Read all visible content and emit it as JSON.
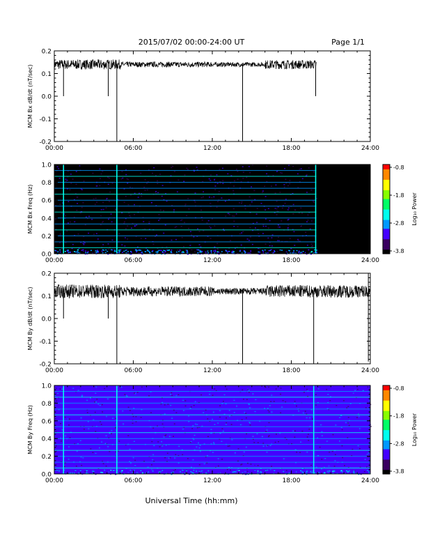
{
  "header": {
    "title": "2015/07/02  00:00-24:00 UT",
    "page": "Page 1/1"
  },
  "footer": {
    "xlabel": "Universal Time (hh:mm)"
  },
  "colorbar": {
    "label": "Log₁₀ Power",
    "ticks": [
      "-0.8",
      "-1.8",
      "-2.8",
      "-3.8"
    ],
    "range": [
      -3.8,
      -0.8
    ],
    "colors": [
      "#000000",
      "#3a0060",
      "#4400ff",
      "#0099ff",
      "#00ffee",
      "#00ff66",
      "#88ff00",
      "#ffff00",
      "#ff8800",
      "#ff0000"
    ]
  },
  "x_ticks": [
    "00:00",
    "06:00",
    "12:00",
    "18:00",
    "24:00"
  ],
  "chart_data": [
    {
      "type": "line",
      "ylabel": "MCM Bx dB/dt (nT/sec)",
      "xlim": [
        0,
        24
      ],
      "ylim": [
        -0.2,
        0.2
      ],
      "yticks": [
        "-0.2",
        "-0.1",
        "0.0",
        "0.1",
        "0.2"
      ],
      "ytick_values": [
        -0.2,
        -0.1,
        0.0,
        0.1,
        0.2
      ],
      "baseline": 0.14,
      "noise_segments": [
        {
          "x": [
            0,
            5
          ],
          "amp": 0.022
        },
        {
          "x": [
            5,
            12
          ],
          "amp": 0.012
        },
        {
          "x": [
            12,
            16
          ],
          "amp": 0.01
        },
        {
          "x": [
            16,
            19.9
          ],
          "amp": 0.02
        }
      ],
      "data_end": 19.9,
      "spikes": [
        {
          "x": 0.7,
          "y": 0.0
        },
        {
          "x": 4.1,
          "y": 0.0
        },
        {
          "x": 4.75,
          "y": -0.2
        },
        {
          "x": 14.3,
          "y": -0.2
        },
        {
          "x": 19.85,
          "y": 0.0
        }
      ]
    },
    {
      "type": "heatmap",
      "ylabel": "MCM Bx Freq (Hz)",
      "xlim": [
        0,
        24
      ],
      "ylim": [
        0,
        1.0
      ],
      "yticks": [
        "0.0",
        "0.2",
        "0.4",
        "0.6",
        "0.8",
        "1.0"
      ],
      "ytick_values": [
        0,
        0.2,
        0.4,
        0.6,
        0.8,
        1.0
      ],
      "data_end": 19.9,
      "background_power": -3.7,
      "harmonic_lines_hz": [
        0.067,
        0.133,
        0.2,
        0.267,
        0.333,
        0.4,
        0.467,
        0.533,
        0.6,
        0.667,
        0.733,
        0.8,
        0.867,
        0.933,
        1.0
      ],
      "vertical_lines_hr": [
        0.7,
        4.75,
        19.85
      ]
    },
    {
      "type": "line",
      "ylabel": "MCM By dB/dt (nT/sec)",
      "xlim": [
        0,
        24
      ],
      "ylim": [
        -0.2,
        0.2
      ],
      "yticks": [
        "-0.2",
        "-0.1",
        "0.0",
        "0.1",
        "0.2"
      ],
      "ytick_values": [
        -0.2,
        -0.1,
        0.0,
        0.1,
        0.2
      ],
      "baseline": 0.12,
      "noise_segments": [
        {
          "x": [
            0,
            5
          ],
          "amp": 0.03
        },
        {
          "x": [
            5,
            12
          ],
          "amp": 0.022
        },
        {
          "x": [
            12,
            16
          ],
          "amp": 0.015
        },
        {
          "x": [
            16,
            24
          ],
          "amp": 0.028
        }
      ],
      "data_end": 24,
      "spikes": [
        {
          "x": 0.7,
          "y": 0.0
        },
        {
          "x": 4.1,
          "y": 0.0
        },
        {
          "x": 4.75,
          "y": -0.2
        },
        {
          "x": 14.3,
          "y": -0.2
        },
        {
          "x": 19.7,
          "y": -0.2
        },
        {
          "x": 23.85,
          "y": -0.19
        },
        {
          "x": 23.85,
          "y": 0.2
        }
      ]
    },
    {
      "type": "heatmap",
      "ylabel": "MCM By Freq (Hz)",
      "xlim": [
        0,
        24
      ],
      "ylim": [
        0,
        1.0
      ],
      "yticks": [
        "0.0",
        "0.2",
        "0.4",
        "0.6",
        "0.8",
        "1.0"
      ],
      "ytick_values": [
        0,
        0.2,
        0.4,
        0.6,
        0.8,
        1.0
      ],
      "data_end": 24,
      "background_power": -3.3,
      "harmonic_lines_hz": [
        0.067,
        0.133,
        0.2,
        0.267,
        0.333,
        0.4,
        0.467,
        0.533,
        0.6,
        0.667,
        0.733,
        0.8,
        0.867,
        0.933,
        1.0
      ],
      "vertical_lines_hr": [
        0.7,
        4.75,
        19.7
      ]
    }
  ]
}
